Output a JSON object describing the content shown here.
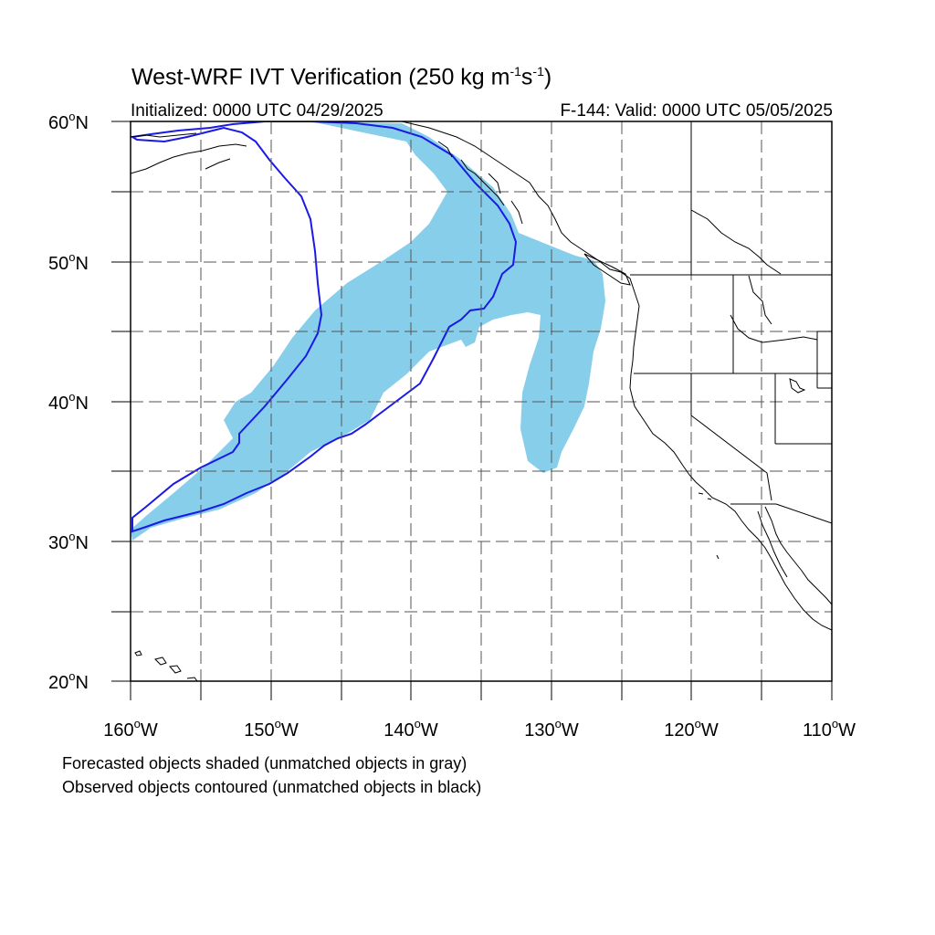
{
  "title": {
    "main": "West-WRF IVT Verification (250 kg m",
    "sup1": "-1",
    "mid": "s",
    "sup2": "-1",
    "end": ")"
  },
  "initialized": "Initialized: 0000 UTC 04/29/2025",
  "valid": "F-144: Valid: 0000 UTC 05/05/2025",
  "map": {
    "lat_range": [
      20,
      60
    ],
    "lon_range": [
      -160,
      -110
    ],
    "lat_labels": [
      "20",
      "30",
      "40",
      "50",
      "60"
    ],
    "lat_suffix": "N",
    "lon_labels": [
      "160",
      "150",
      "140",
      "130",
      "120",
      "110"
    ],
    "lon_suffix": "W",
    "degree_symbol": "o",
    "gridlines": "dashed",
    "forecast_fill_color": "#87ceeb",
    "observed_contour_color": "#1a1ae6",
    "coastline_color": "#000000"
  },
  "legend": {
    "line1": "Forecasted objects shaded (unmatched objects in gray)",
    "line2": "Observed objects contoured (unmatched objects in black)"
  }
}
